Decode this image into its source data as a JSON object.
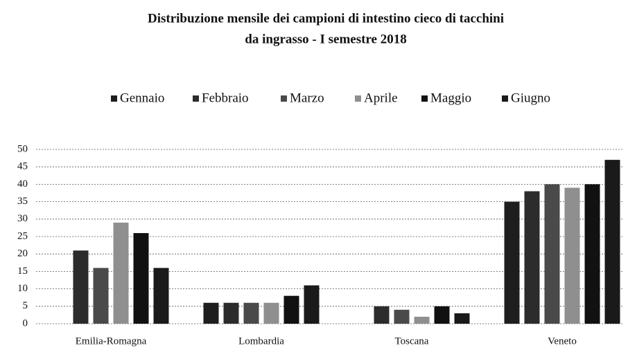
{
  "chart_data": {
    "type": "bar",
    "title": [
      "Distribuzione  mensile dei campioni di intestino cieco di tacchini",
      "da ingrasso - I semestre 2018"
    ],
    "categories": [
      "Emilia-Romagna",
      "Lombardia",
      "Toscana",
      "Veneto"
    ],
    "series": [
      {
        "name": "Gennaio",
        "color": "#1e1e1e",
        "values": [
          0,
          6,
          0,
          35
        ]
      },
      {
        "name": "Febbraio",
        "color": "#2c2c2c",
        "values": [
          21,
          6,
          5,
          38
        ]
      },
      {
        "name": "Marzo",
        "color": "#4a4a4a",
        "values": [
          16,
          6,
          4,
          40
        ]
      },
      {
        "name": "Aprile",
        "color": "#8f8f8f",
        "values": [
          29,
          6,
          2,
          39
        ]
      },
      {
        "name": "Maggio",
        "color": "#111111",
        "values": [
          26,
          8,
          5,
          40
        ]
      },
      {
        "name": "Giugno",
        "color": "#1a1a1a",
        "values": [
          16,
          11,
          3,
          47
        ]
      }
    ],
    "ylim": [
      0,
      50
    ],
    "yticks": [
      0,
      5,
      10,
      15,
      20,
      25,
      30,
      35,
      40,
      45,
      50
    ],
    "grid": true,
    "legend": "top"
  }
}
